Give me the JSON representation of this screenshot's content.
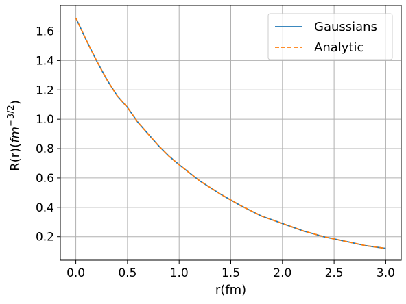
{
  "chart_data": {
    "type": "line",
    "title": "",
    "xlabel": "r(fm)",
    "ylabel": {
      "prefix": "R(r)(",
      "unit": "fm",
      "exponent": "−3/2",
      "suffix": ")"
    },
    "xlim": [
      -0.15,
      3.15
    ],
    "ylim": [
      0.04,
      1.775
    ],
    "xticks": [
      0.0,
      0.5,
      1.0,
      1.5,
      2.0,
      2.5,
      3.0
    ],
    "xtick_labels": [
      "0.0",
      "0.5",
      "1.0",
      "1.5",
      "2.0",
      "2.5",
      "3.0"
    ],
    "yticks": [
      0.2,
      0.4,
      0.6,
      0.8,
      1.0,
      1.2,
      1.4,
      1.6
    ],
    "ytick_labels": [
      "0.2",
      "0.4",
      "0.6",
      "0.8",
      "1.0",
      "1.2",
      "1.4",
      "1.6"
    ],
    "grid": true,
    "legend_position": "top-right",
    "x": [
      0.0,
      0.1,
      0.2,
      0.3,
      0.4,
      0.5,
      0.6,
      0.7,
      0.8,
      0.9,
      1.0,
      1.2,
      1.4,
      1.6,
      1.8,
      2.0,
      2.2,
      2.4,
      2.6,
      2.8,
      3.0
    ],
    "series": [
      {
        "name": "Gaussians",
        "color": "#1f77b4",
        "style": "solid",
        "values": [
          1.69,
          1.54,
          1.4,
          1.27,
          1.16,
          1.08,
          0.98,
          0.9,
          0.82,
          0.75,
          0.69,
          0.58,
          0.49,
          0.41,
          0.34,
          0.29,
          0.24,
          0.2,
          0.17,
          0.14,
          0.12
        ]
      },
      {
        "name": "Analytic",
        "color": "#ff7f0e",
        "style": "dashed",
        "values": [
          1.69,
          1.54,
          1.4,
          1.27,
          1.16,
          1.08,
          0.98,
          0.9,
          0.82,
          0.75,
          0.69,
          0.58,
          0.49,
          0.41,
          0.34,
          0.29,
          0.24,
          0.2,
          0.17,
          0.14,
          0.12
        ]
      }
    ]
  }
}
